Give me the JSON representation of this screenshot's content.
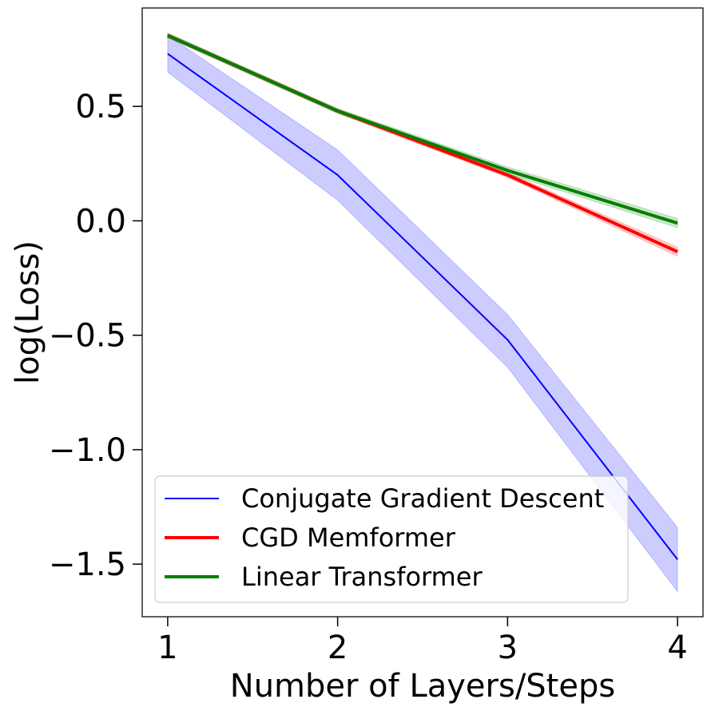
{
  "chart_data": {
    "type": "line",
    "xlabel": "Number of Layers/Steps",
    "ylabel": "log(Loss)",
    "x": [
      1,
      2,
      3,
      4
    ],
    "xlim": [
      0.85,
      4.15
    ],
    "ylim": [
      -1.73,
      0.93
    ],
    "xticks": [
      1,
      2,
      3,
      4
    ],
    "xtick_labels": [
      "1",
      "2",
      "3",
      "4"
    ],
    "yticks": [
      0.5,
      0.0,
      -0.5,
      -1.0,
      -1.5
    ],
    "ytick_labels": [
      "0.5",
      "0.0",
      "−0.5",
      "−1.0",
      "−1.5"
    ],
    "grid": false,
    "legend_position": "bottom-left",
    "series": [
      {
        "name": "Conjugate Gradient Descent",
        "color": "#0000ff",
        "band_color": "#0000ff",
        "line_weight": "thin",
        "values": [
          0.73,
          0.2,
          -0.52,
          -1.48
        ],
        "lower": [
          0.65,
          0.09,
          -0.64,
          -1.62
        ],
        "upper": [
          0.81,
          0.31,
          -0.41,
          -1.34
        ]
      },
      {
        "name": "CGD Memformer",
        "color": "#ff0000",
        "band_color": "#ff0000",
        "line_weight": "thick",
        "values": [
          0.81,
          0.48,
          0.2,
          -0.135
        ],
        "lower": [
          0.8,
          0.47,
          0.19,
          -0.155
        ],
        "upper": [
          0.82,
          0.49,
          0.21,
          -0.115
        ]
      },
      {
        "name": "Linear Transformer",
        "color": "#008000",
        "band_color": "#008000",
        "line_weight": "thick",
        "values": [
          0.81,
          0.48,
          0.22,
          -0.01
        ],
        "lower": [
          0.8,
          0.47,
          0.205,
          -0.03
        ],
        "upper": [
          0.82,
          0.49,
          0.235,
          0.01
        ]
      }
    ]
  }
}
